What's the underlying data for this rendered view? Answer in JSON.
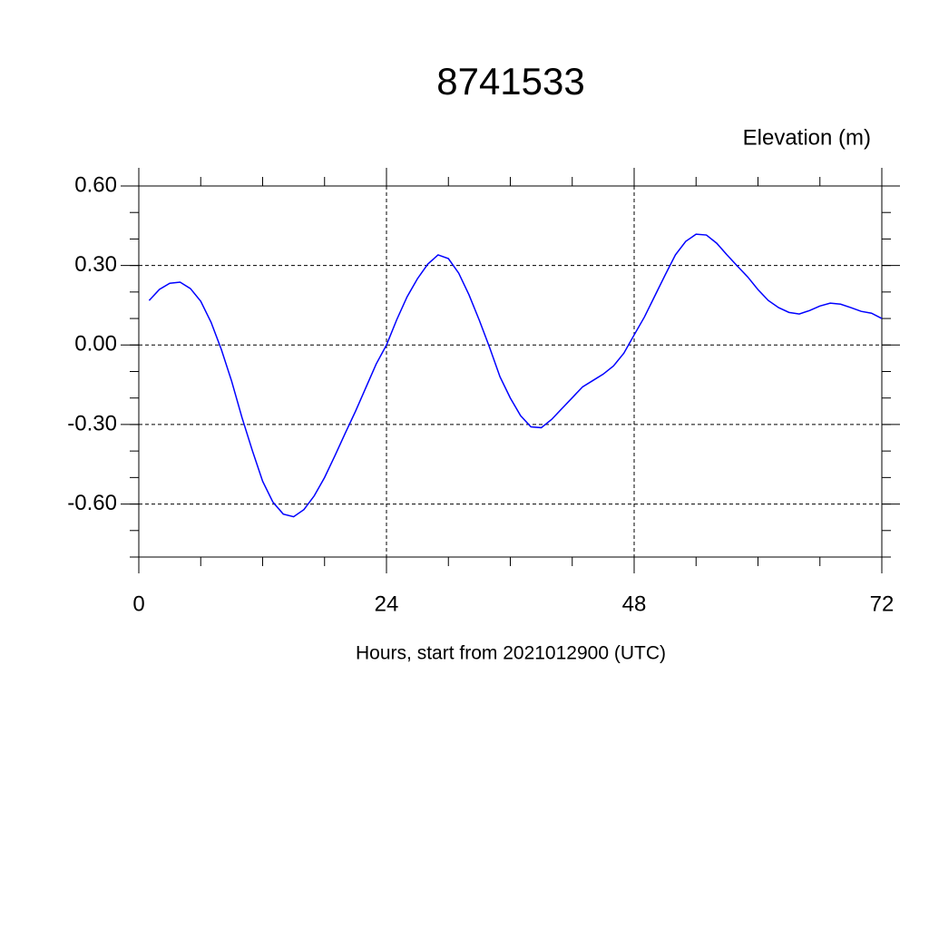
{
  "chart_data": {
    "type": "line",
    "title": "8741533",
    "y_label": "Elevation (m)",
    "x_label": "Hours, start from 2021012900 (UTC)",
    "x": [
      1,
      2,
      3,
      4,
      5,
      6,
      7,
      8,
      9,
      10,
      11,
      12,
      13,
      14,
      15,
      16,
      17,
      18,
      19,
      20,
      21,
      22,
      23,
      24,
      25,
      26,
      27,
      28,
      29,
      30,
      31,
      32,
      33,
      34,
      35,
      36,
      37,
      38,
      39,
      40,
      41,
      42,
      43,
      44,
      45,
      46,
      47,
      48,
      49,
      50,
      51,
      52,
      53,
      54,
      55,
      56,
      57,
      58,
      59,
      60,
      61,
      62,
      63,
      64,
      65,
      66,
      67,
      68,
      69,
      70,
      71,
      72
    ],
    "series": [
      {
        "color": "#0000ff",
        "values": [
          0.168,
          0.21,
          0.233,
          0.237,
          0.213,
          0.165,
          0.086,
          -0.017,
          -0.137,
          -0.274,
          -0.398,
          -0.514,
          -0.593,
          -0.638,
          -0.648,
          -0.621,
          -0.569,
          -0.5,
          -0.418,
          -0.333,
          -0.25,
          -0.161,
          -0.072,
          0.0,
          0.096,
          0.182,
          0.25,
          0.305,
          0.34,
          0.326,
          0.271,
          0.189,
          0.093,
          -0.01,
          -0.12,
          -0.2,
          -0.267,
          -0.309,
          -0.312,
          -0.281,
          -0.24,
          -0.199,
          -0.158,
          -0.134,
          -0.11,
          -0.079,
          -0.031,
          0.038,
          0.106,
          0.185,
          0.264,
          0.34,
          0.391,
          0.418,
          0.415,
          0.384,
          0.34,
          0.298,
          0.257,
          0.209,
          0.168,
          0.141,
          0.123,
          0.117,
          0.13,
          0.147,
          0.158,
          0.154,
          0.141,
          0.127,
          0.12,
          0.1
        ]
      }
    ],
    "xlim": [
      0,
      72
    ],
    "xticks": [
      0,
      24,
      48,
      72
    ],
    "ylim": [
      -0.8,
      0.6
    ],
    "yticks": [
      {
        "value": 0.6,
        "label": "0.60"
      },
      {
        "value": 0.3,
        "label": "0.30"
      },
      {
        "value": 0,
        "label": "0.00"
      },
      {
        "value": -0.3,
        "label": "-0.30"
      },
      {
        "value": -0.6,
        "label": "-0.60"
      }
    ],
    "grid": true
  }
}
